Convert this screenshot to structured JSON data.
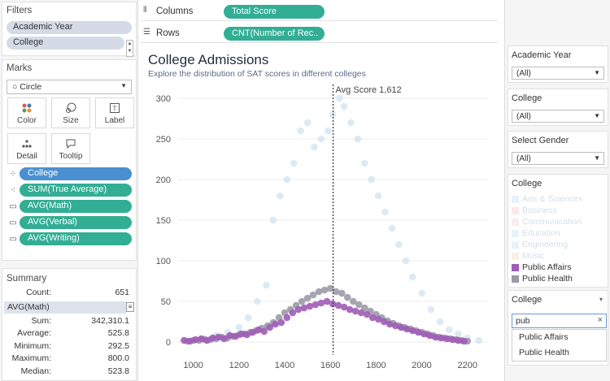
{
  "filters": {
    "title": "Filters",
    "items": [
      "Academic Year",
      "College"
    ]
  },
  "marks": {
    "title": "Marks",
    "mark_type": "Circle",
    "buttons": [
      {
        "label": "Color",
        "icon": "color-dots-icon"
      },
      {
        "label": "Size",
        "icon": "size-icon"
      },
      {
        "label": "Label",
        "icon": "label-icon"
      },
      {
        "label": "Detail",
        "icon": "detail-icon"
      },
      {
        "label": "Tooltip",
        "icon": "tooltip-icon"
      }
    ],
    "fields": [
      {
        "label": "College",
        "icon": "color-dots-icon",
        "color": "#4a90d0"
      },
      {
        "label": "SUM(True Average)",
        "icon": "detail-icon",
        "color": "#31ae94"
      },
      {
        "label": "AVG(Math)",
        "icon": "tooltip-icon",
        "color": "#31ae94"
      },
      {
        "label": "AVG(Verbal)",
        "icon": "tooltip-icon",
        "color": "#31ae94"
      },
      {
        "label": "AVG(Writing)",
        "icon": "tooltip-icon",
        "color": "#31ae94"
      }
    ]
  },
  "summary": {
    "title": "Summary",
    "count_label": "Count:",
    "count_value": "651",
    "measure": "AVG(Math)",
    "rows": [
      {
        "label": "Sum:",
        "value": "342,310.1"
      },
      {
        "label": "Average:",
        "value": "525.8"
      },
      {
        "label": "Minimum:",
        "value": "292.5"
      },
      {
        "label": "Maximum:",
        "value": "800.0"
      },
      {
        "label": "Median:",
        "value": "523.8"
      }
    ]
  },
  "shelves": {
    "columns_label": "Columns",
    "columns_pill": "Total Score",
    "rows_label": "Rows",
    "rows_pill": "CNT(Number of Rec.."
  },
  "view": {
    "title": "College Admissions",
    "subtitle": "Explore the distribution of SAT scores in different colleges"
  },
  "chart_data": {
    "type": "scatter",
    "title": "College Admissions",
    "xlabel": "",
    "ylabel": "",
    "xlim": [
      930,
      2290
    ],
    "ylim": [
      -8,
      305
    ],
    "x_ticks": [
      1000,
      1200,
      1400,
      1600,
      1800,
      2000,
      2200
    ],
    "y_ticks": [
      0,
      50,
      100,
      150,
      200,
      250,
      300
    ],
    "reference_line": {
      "x": 1612,
      "label": "Avg Score 1,612"
    },
    "grid": true,
    "series": [
      {
        "name": "Public Affairs",
        "color": "#a05cb7",
        "highlighted": true,
        "x": [
          960,
          985,
          1010,
          1035,
          1060,
          1085,
          1110,
          1135,
          1160,
          1185,
          1210,
          1235,
          1260,
          1285,
          1310,
          1335,
          1360,
          1385,
          1410,
          1435,
          1460,
          1485,
          1510,
          1535,
          1560,
          1585,
          1610,
          1635,
          1660,
          1685,
          1710,
          1735,
          1760,
          1785,
          1810,
          1835,
          1860,
          1885,
          1910,
          1935,
          1960,
          1985,
          2010,
          2035,
          2060,
          2085,
          2110,
          2135,
          2160,
          2185
        ],
        "y": [
          2,
          1,
          3,
          4,
          2,
          5,
          6,
          4,
          8,
          7,
          10,
          9,
          12,
          15,
          13,
          18,
          22,
          24,
          30,
          36,
          40,
          42,
          44,
          46,
          48,
          50,
          47,
          45,
          43,
          40,
          38,
          36,
          34,
          30,
          28,
          25,
          22,
          20,
          18,
          16,
          14,
          12,
          10,
          8,
          6,
          5,
          4,
          3,
          2,
          1
        ]
      },
      {
        "name": "Public Health",
        "color": "#9b9aa6",
        "highlighted": true,
        "x": [
          975,
          1000,
          1025,
          1050,
          1075,
          1100,
          1125,
          1150,
          1175,
          1200,
          1225,
          1250,
          1275,
          1300,
          1325,
          1350,
          1375,
          1400,
          1425,
          1450,
          1475,
          1500,
          1525,
          1550,
          1575,
          1600,
          1625,
          1650,
          1675,
          1700,
          1725,
          1750,
          1775,
          1800,
          1825,
          1850,
          1875,
          1900,
          1925,
          1950,
          1975,
          2000,
          2025,
          2050,
          2075,
          2100,
          2125,
          2150,
          2175,
          2200
        ],
        "y": [
          1,
          2,
          2,
          3,
          3,
          4,
          6,
          5,
          7,
          9,
          10,
          12,
          14,
          17,
          20,
          24,
          30,
          36,
          40,
          45,
          50,
          54,
          58,
          62,
          64,
          66,
          62,
          60,
          55,
          50,
          46,
          42,
          38,
          34,
          30,
          26,
          23,
          20,
          18,
          16,
          14,
          12,
          10,
          8,
          6,
          5,
          4,
          3,
          2,
          1
        ]
      },
      {
        "name": "Other colleges",
        "color": "#cfe3f2",
        "highlighted": false,
        "x": [
          1000,
          1050,
          1100,
          1150,
          1200,
          1240,
          1280,
          1320,
          1350,
          1380,
          1410,
          1440,
          1470,
          1500,
          1530,
          1560,
          1590,
          1610,
          1640,
          1660,
          1690,
          1720,
          1750,
          1780,
          1810,
          1840,
          1870,
          1900,
          1930,
          1960,
          2000,
          2040,
          2080,
          2120,
          2160,
          2200,
          2250
        ],
        "y": [
          2,
          4,
          8,
          12,
          18,
          30,
          50,
          70,
          150,
          180,
          200,
          220,
          260,
          270,
          240,
          250,
          260,
          280,
          300,
          290,
          270,
          250,
          220,
          200,
          180,
          160,
          140,
          120,
          100,
          80,
          60,
          40,
          25,
          15,
          10,
          5,
          2
        ]
      }
    ]
  },
  "right": {
    "filter1": {
      "title": "Academic Year",
      "value": "(All)"
    },
    "filter2": {
      "title": "College",
      "value": "(All)"
    },
    "filter3": {
      "title": "Select Gender",
      "value": "(All)"
    },
    "legend": {
      "title": "College",
      "items": [
        {
          "label": "Arts & Sciences",
          "color": "#cfe3f2",
          "faded": true
        },
        {
          "label": "Business",
          "color": "#f3cfcc",
          "faded": true
        },
        {
          "label": "Communication",
          "color": "#f3d6e0",
          "faded": true
        },
        {
          "label": "Education",
          "color": "#cfe3f2",
          "faded": true
        },
        {
          "label": "Engineering",
          "color": "#cfe6ee",
          "faded": true
        },
        {
          "label": "Music",
          "color": "#e9e2c8",
          "faded": true
        },
        {
          "label": "Public Affairs",
          "color": "#a05cb7",
          "faded": false
        },
        {
          "label": "Public Health",
          "color": "#9b9aa6",
          "faded": false
        }
      ]
    },
    "search": {
      "title": "College",
      "query": "pub",
      "suggestions": [
        "Public Affairs",
        "Public Health"
      ]
    }
  }
}
